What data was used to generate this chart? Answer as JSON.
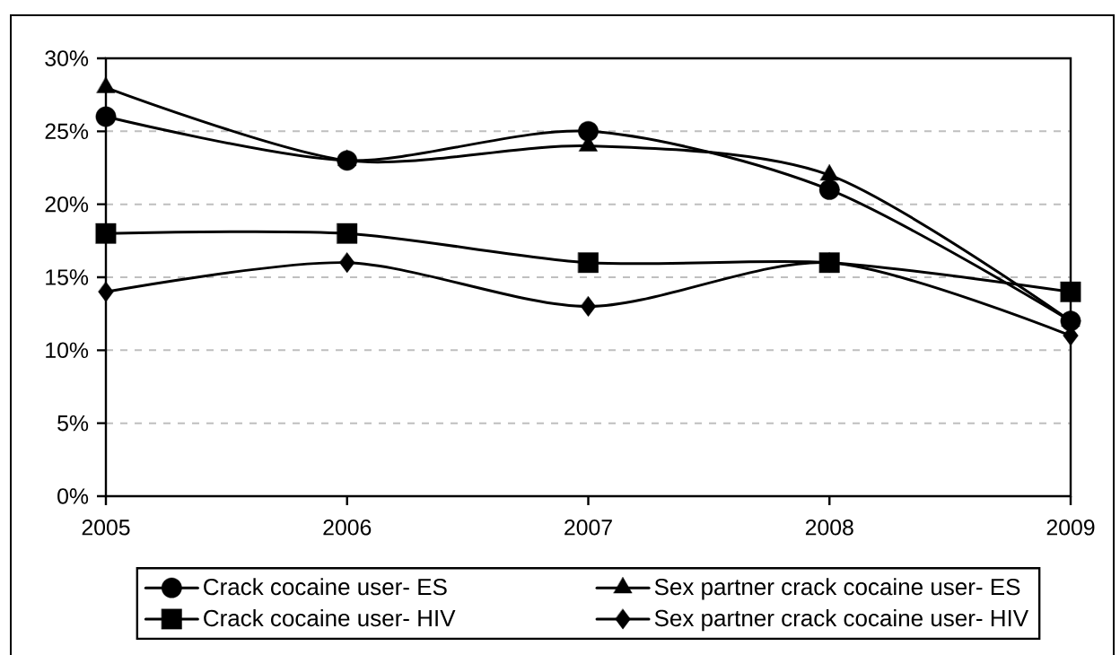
{
  "chart_data": {
    "type": "line",
    "x": [
      2005,
      2006,
      2007,
      2008,
      2009
    ],
    "xlim": [
      2005,
      2009
    ],
    "xticks": [
      2005,
      2006,
      2007,
      2008,
      2009
    ],
    "ylim": [
      0,
      30
    ],
    "yticks": [
      {
        "value": 0,
        "label": "0%"
      },
      {
        "value": 5,
        "label": "5%"
      },
      {
        "value": 10,
        "label": "10%"
      },
      {
        "value": 15,
        "label": "15%"
      },
      {
        "value": 20,
        "label": "20%"
      },
      {
        "value": 25,
        "label": "25%"
      },
      {
        "value": 30,
        "label": "30%"
      }
    ],
    "grid": "y",
    "legend": "bottom",
    "line_style": "solid",
    "series": [
      {
        "name": "Crack cocaine user- ES",
        "color": "#000000",
        "marker": "circle",
        "values": [
          26,
          23,
          25,
          21,
          12
        ]
      },
      {
        "name": "Sex partner crack cocaine user- ES",
        "color": "#000000",
        "marker": "triangle",
        "values": [
          28,
          23,
          24,
          22,
          12
        ]
      },
      {
        "name": "Crack cocaine user- HIV",
        "color": "#000000",
        "marker": "square",
        "values": [
          18,
          18,
          16,
          16,
          14
        ]
      },
      {
        "name": "Sex partner crack cocaine user- HIV",
        "color": "#000000",
        "marker": "diamond",
        "values": [
          14,
          16,
          13,
          16,
          11
        ]
      }
    ]
  }
}
